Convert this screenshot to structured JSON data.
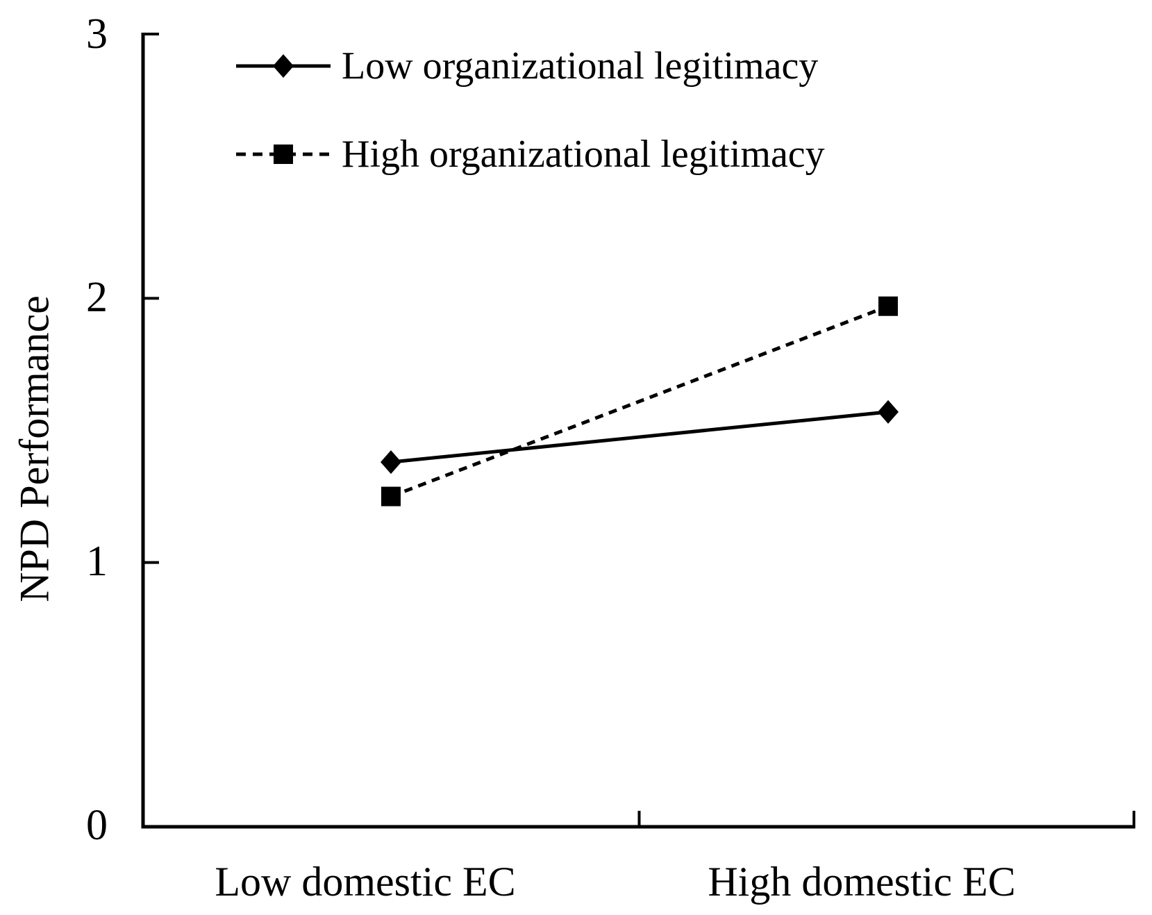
{
  "figure": {
    "background_color": "#ffffff",
    "ink_color": "#000000"
  },
  "chart_data": {
    "type": "line",
    "title": "",
    "xlabel": "",
    "ylabel": "NPD Performance",
    "categories": [
      "Low domestic EC",
      "High domestic EC"
    ],
    "ylim": [
      0,
      3
    ],
    "yticks": [
      0,
      1,
      2,
      3
    ],
    "grid": false,
    "legend_position": "top-left inside plot area",
    "series": [
      {
        "name": "Low organizational legitimacy",
        "marker": "diamond",
        "line_style": "solid",
        "values": [
          1.38,
          1.57
        ]
      },
      {
        "name": "High organizational legitimacy",
        "marker": "square",
        "line_style": "dashed",
        "values": [
          1.25,
          1.97
        ]
      }
    ]
  }
}
